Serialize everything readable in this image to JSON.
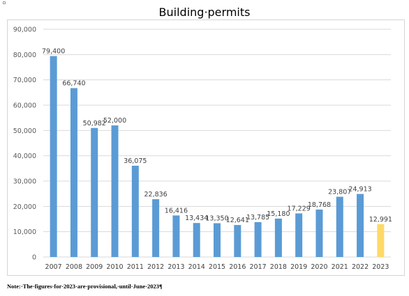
{
  "chart_data": {
    "type": "bar",
    "title": "Building·permits",
    "xlabel": "",
    "ylabel": "",
    "categories": [
      "2007",
      "2008",
      "2009",
      "2010",
      "2011",
      "2012",
      "2013",
      "2014",
      "2015",
      "2016",
      "2017",
      "2018",
      "2019",
      "2020",
      "2021",
      "2022",
      "2023"
    ],
    "values": [
      79400,
      66740,
      50982,
      52000,
      36075,
      22836,
      16416,
      13434,
      13350,
      12641,
      13785,
      15180,
      17229,
      18768,
      23807,
      24913,
      12991
    ],
    "value_labels": [
      "79,400",
      "66,740",
      "50,982",
      "52,000",
      "36,075",
      "22,836",
      "16,416",
      "13,434",
      "13,350",
      "12,641",
      "13,785",
      "15,180",
      "17,229",
      "18,768",
      "23,807",
      "24,913",
      "12,991"
    ],
    "ylim": [
      0,
      90000
    ],
    "yticks": [
      0,
      10000,
      20000,
      30000,
      40000,
      50000,
      60000,
      70000,
      80000,
      90000
    ],
    "ytick_labels": [
      "0",
      "10,000",
      "20,000",
      "30,000",
      "40,000",
      "50,000",
      "60,000",
      "70,000",
      "80,000",
      "90,000"
    ],
    "grid": true,
    "legend": "none",
    "bar_color": "#5b9bd5",
    "highlight_color": "#ffd966",
    "highlight_category": "2023"
  },
  "note": "Note:·The·figures·for·2023·are·provisional,·until·June·2023¶"
}
